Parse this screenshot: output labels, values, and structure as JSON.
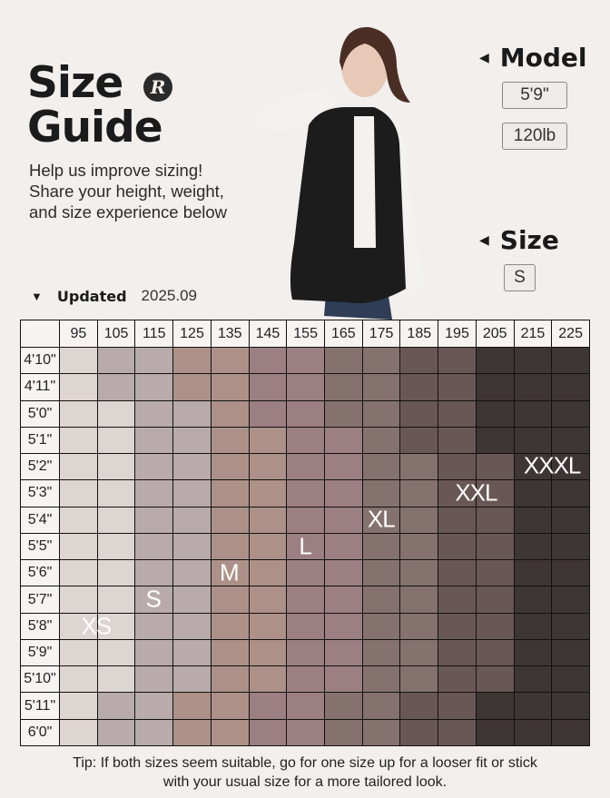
{
  "header": {
    "title_line1": "Size",
    "title_line2": "Guide",
    "logo_letter": "R",
    "intro_lines": [
      "Help us improve sizing!",
      "Share your height, weight,",
      "and size experience below"
    ],
    "updated_label": "Updated",
    "updated_date": "2025.09"
  },
  "model": {
    "heading": "Model",
    "height": "5'9\"",
    "weight": "120lb",
    "size_heading": "Size",
    "size": "S"
  },
  "table": {
    "weights": [
      "95",
      "105",
      "115",
      "125",
      "135",
      "145",
      "155",
      "165",
      "175",
      "185",
      "195",
      "205",
      "215",
      "225"
    ],
    "heights": [
      "4'10\"",
      "4'11\"",
      "5'0\"",
      "5'1\"",
      "5'2\"",
      "5'3\"",
      "5'4\"",
      "5'5\"",
      "5'6\"",
      "5'7\"",
      "5'8\"",
      "5'9\"",
      "5'10\"",
      "5'11\"",
      "6'0\""
    ],
    "size_colors": {
      "XS": "#ddd5d2",
      "S": "#b9abab",
      "M": "#ad9188",
      "L": "#9c7f83",
      "XL": "#85726f",
      "XXL": "#695756",
      "XXXL": "#3e3535"
    },
    "cells": [
      [
        "XS",
        "S",
        "S",
        "M",
        "M",
        "L",
        "L",
        "XL",
        "XL",
        "XXL",
        "XXL",
        "XXXL",
        "XXXL",
        "XXXL"
      ],
      [
        "XS",
        "S",
        "S",
        "M",
        "M",
        "L",
        "L",
        "XL",
        "XL",
        "XXL",
        "XXL",
        "XXXL",
        "XXXL",
        "XXXL"
      ],
      [
        "XS",
        "XS",
        "S",
        "S",
        "M",
        "L",
        "L",
        "XL",
        "XL",
        "XXL",
        "XXL",
        "XXXL",
        "XXXL",
        "XXXL"
      ],
      [
        "XS",
        "XS",
        "S",
        "S",
        "M",
        "M",
        "L",
        "L",
        "XL",
        "XXL",
        "XXL",
        "XXXL",
        "XXXL",
        "XXXL"
      ],
      [
        "XS",
        "XS",
        "S",
        "S",
        "M",
        "M",
        "L",
        "L",
        "XL",
        "XL",
        "XXL",
        "XXL",
        "XXXL",
        "XXXL"
      ],
      [
        "XS",
        "XS",
        "S",
        "S",
        "M",
        "M",
        "L",
        "L",
        "XL",
        "XL",
        "XXL",
        "XXL",
        "XXXL",
        "XXXL"
      ],
      [
        "XS",
        "XS",
        "S",
        "S",
        "M",
        "M",
        "L",
        "L",
        "XL",
        "XL",
        "XXL",
        "XXL",
        "XXXL",
        "XXXL"
      ],
      [
        "XS",
        "XS",
        "S",
        "S",
        "M",
        "M",
        "L",
        "L",
        "XL",
        "XL",
        "XXL",
        "XXL",
        "XXXL",
        "XXXL"
      ],
      [
        "XS",
        "XS",
        "S",
        "S",
        "M",
        "M",
        "L",
        "L",
        "XL",
        "XL",
        "XXL",
        "XXL",
        "XXXL",
        "XXXL"
      ],
      [
        "XS",
        "XS",
        "S",
        "S",
        "M",
        "M",
        "L",
        "L",
        "XL",
        "XL",
        "XXL",
        "XXL",
        "XXXL",
        "XXXL"
      ],
      [
        "XS",
        "XS",
        "S",
        "S",
        "M",
        "M",
        "L",
        "L",
        "XL",
        "XL",
        "XXL",
        "XXL",
        "XXXL",
        "XXXL"
      ],
      [
        "XS",
        "XS",
        "S",
        "S",
        "M",
        "M",
        "L",
        "L",
        "XL",
        "XL",
        "XXL",
        "XXL",
        "XXXL",
        "XXXL"
      ],
      [
        "XS",
        "XS",
        "S",
        "S",
        "M",
        "M",
        "L",
        "L",
        "XL",
        "XL",
        "XXL",
        "XXL",
        "XXXL",
        "XXXL"
      ],
      [
        "XS",
        "S",
        "S",
        "M",
        "M",
        "L",
        "L",
        "XL",
        "XL",
        "XXL",
        "XXL",
        "XXXL",
        "XXXL",
        "XXXL"
      ],
      [
        "XS",
        "S",
        "S",
        "M",
        "M",
        "L",
        "L",
        "XL",
        "XL",
        "XXL",
        "XXL",
        "XXXL",
        "XXXL",
        "XXXL"
      ]
    ],
    "labels": [
      {
        "text": "XS",
        "height": "5'8\"",
        "weights": [
          "95",
          "105"
        ]
      },
      {
        "text": "S",
        "height": "5'7\"",
        "weights": [
          "115"
        ]
      },
      {
        "text": "M",
        "height": "5'6\"",
        "weights": [
          "135"
        ]
      },
      {
        "text": "L",
        "height": "5'5\"",
        "weights": [
          "155"
        ]
      },
      {
        "text": "XL",
        "height": "5'4\"",
        "weights": [
          "175"
        ]
      },
      {
        "text": "XXL",
        "height": "5'3\"",
        "weights": [
          "195",
          "205"
        ]
      },
      {
        "text": "XXXL",
        "height": "5'2\"",
        "weights": [
          "215",
          "225"
        ]
      }
    ]
  },
  "tip": [
    "Tip: If both sizes seem suitable, go for one size up for a looser fit or stick",
    "with your usual size for a more tailored look."
  ]
}
